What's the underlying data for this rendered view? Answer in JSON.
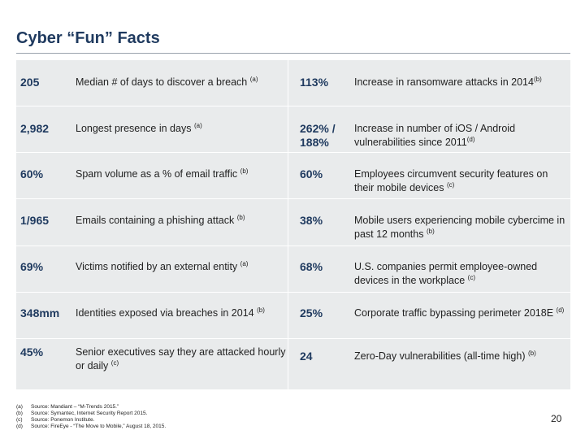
{
  "title": "Cyber “Fun” Facts",
  "rows": [
    {
      "left": {
        "value": "205",
        "text": "Median # of days to discover a breach",
        "note": "(a)"
      },
      "right": {
        "value": "113%",
        "text": "Increase in ransomware attacks in 2014",
        "note": "(b)"
      }
    },
    {
      "left": {
        "value": "2,982",
        "text": "Longest presence in days",
        "note": "(a)"
      },
      "right": {
        "value": "262% / 188%",
        "text": "Increase in number of iOS / Android vulnerabilities since 2011",
        "note": "(d)"
      }
    },
    {
      "left": {
        "value": "60%",
        "text": "Spam volume as a % of email traffic",
        "note": "(b)"
      },
      "right": {
        "value": "60%",
        "text": "Employees circumvent security features on their mobile devices",
        "note": "(c)"
      }
    },
    {
      "left": {
        "value": "1/965",
        "text": "Emails containing a phishing attack",
        "note": "(b)"
      },
      "right": {
        "value": "38%",
        "text": "Mobile users experiencing mobile cybercime in past 12 months",
        "note": "(b)"
      }
    },
    {
      "left": {
        "value": "69%",
        "text": "Victims notified by an external entity",
        "note": "(a)"
      },
      "right": {
        "value": "68%",
        "text": "U.S. companies permit employee-owned devices in the workplace",
        "note": "(c)"
      }
    },
    {
      "left": {
        "value": "348mm",
        "text": "Identities exposed via breaches in 2014",
        "note": "(b)"
      },
      "right": {
        "value": "25%",
        "text": "Corporate traffic bypassing perimeter 2018E",
        "note": "(d)"
      }
    },
    {
      "left": {
        "value": "45%",
        "text": "Senior executives say they are attacked hourly or daily",
        "note": "(c)"
      },
      "right": {
        "value": "24",
        "text": "Zero-Day vulnerabilities (all-time high)",
        "note": "(b)"
      }
    }
  ],
  "footnotes": [
    {
      "key": "(a)",
      "text": "Source: Mandiant – “M-Trends 2015.”"
    },
    {
      "key": "(b)",
      "text": "Source: Symantec, Internet Security Report 2015."
    },
    {
      "key": "(c)",
      "text": "Source: Ponemon Institute."
    },
    {
      "key": "(d)",
      "text": "Source: FireEye - “The Move to Mobile,” August 18, 2015."
    }
  ],
  "page_number": "20"
}
